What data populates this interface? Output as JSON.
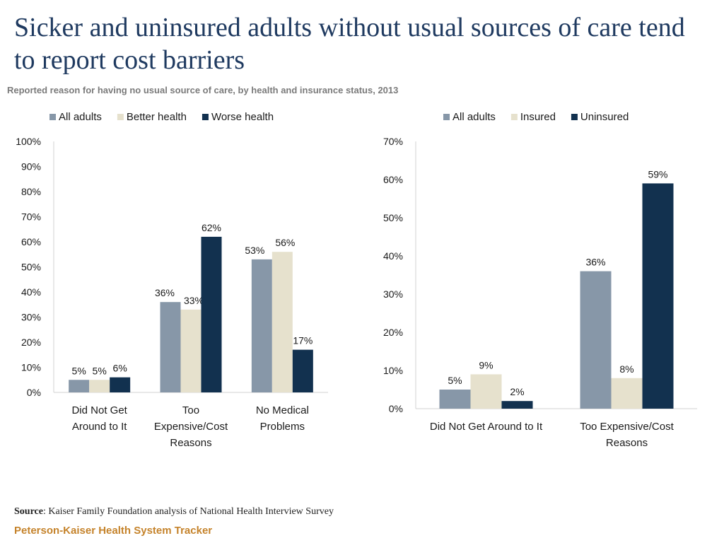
{
  "title": "Sicker and uninsured adults without usual sources of care tend to report cost barriers",
  "subtitle": "Reported reason for having no usual source of care, by health and insurance status, 2013",
  "source_label": "Source",
  "source_text": ": Kaiser Family Foundation analysis of National Health Interview Survey",
  "brand": "Peterson-Kaiser Health System Tracker",
  "chart_data": [
    {
      "type": "bar",
      "categories": [
        [
          "Did Not Get",
          "Around to It"
        ],
        [
          "Too",
          "Expensive/Cost",
          "Reasons"
        ],
        [
          "No Medical",
          "Problems"
        ]
      ],
      "series": [
        {
          "name": "All adults",
          "color": "#8797a8",
          "values": [
            5,
            36,
            53
          ],
          "labels": [
            "5%",
            "36%",
            "53%"
          ]
        },
        {
          "name": "Better health",
          "color": "#e6e1cd",
          "values": [
            5,
            33,
            56
          ],
          "labels": [
            "5%",
            "33%",
            "56%"
          ]
        },
        {
          "name": "Worse health",
          "color": "#12314f",
          "values": [
            6,
            62,
            17
          ],
          "labels": [
            "6%",
            "62%",
            "17%"
          ]
        }
      ],
      "ylim": [
        0,
        100
      ],
      "yticks": [
        "0%",
        "10%",
        "20%",
        "30%",
        "40%",
        "50%",
        "60%",
        "70%",
        "80%",
        "90%",
        "100%"
      ],
      "legend_position": "top"
    },
    {
      "type": "bar",
      "categories": [
        [
          "Did Not Get Around to It"
        ],
        [
          "Too Expensive/Cost",
          "Reasons"
        ]
      ],
      "series": [
        {
          "name": "All adults",
          "color": "#8797a8",
          "values": [
            5,
            36
          ],
          "labels": [
            "5%",
            "36%"
          ]
        },
        {
          "name": "Insured",
          "color": "#e6e1cd",
          "values": [
            9,
            8
          ],
          "labels": [
            "9%",
            "8%"
          ]
        },
        {
          "name": "Uninsured",
          "color": "#12314f",
          "values": [
            2,
            59
          ],
          "labels": [
            "2%",
            "59%"
          ]
        }
      ],
      "ylim": [
        0,
        70
      ],
      "yticks": [
        "0%",
        "10%",
        "20%",
        "30%",
        "40%",
        "50%",
        "60%",
        "70%"
      ],
      "legend_position": "top"
    }
  ]
}
